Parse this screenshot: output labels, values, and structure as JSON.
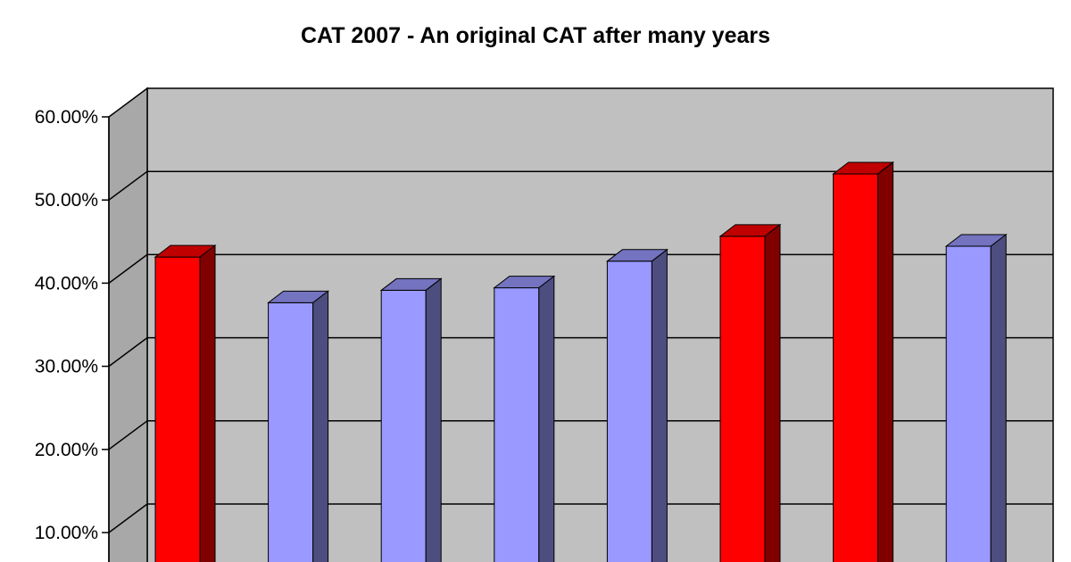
{
  "chart_data": {
    "type": "bar",
    "title": "CAT 2007 - An original CAT after many years",
    "categories": [
      "",
      "",
      "",
      "",
      "",
      "",
      "",
      ""
    ],
    "values": [
      45.5,
      40.0,
      41.5,
      41.8,
      45.0,
      48.0,
      55.5,
      46.8
    ],
    "bar_colors": [
      "#ff0000",
      "#9999ff",
      "#9999ff",
      "#9999ff",
      "#9999ff",
      "#ff0000",
      "#ff0000",
      "#9999ff"
    ],
    "bar_side_colors": [
      "#800000",
      "#4d4d80",
      "#4d4d80",
      "#4d4d80",
      "#4d4d80",
      "#800000",
      "#800000",
      "#4d4d80"
    ],
    "bar_top_colors": [
      "#c00000",
      "#7373c0",
      "#7373c0",
      "#7373c0",
      "#7373c0",
      "#c00000",
      "#c00000",
      "#7373c0"
    ],
    "y_ticks": [
      {
        "value": 10,
        "label": "10.00%"
      },
      {
        "value": 20,
        "label": "20.00%"
      },
      {
        "value": 30,
        "label": "30.00%"
      },
      {
        "value": 40,
        "label": "40.00%"
      },
      {
        "value": 50,
        "label": "50.00%"
      },
      {
        "value": 60,
        "label": "60.00%"
      }
    ],
    "ylim": [
      0,
      60
    ],
    "xlabel": "",
    "ylabel": "",
    "grid": true,
    "three_d": true,
    "wall_color": "#c0c0c0"
  }
}
